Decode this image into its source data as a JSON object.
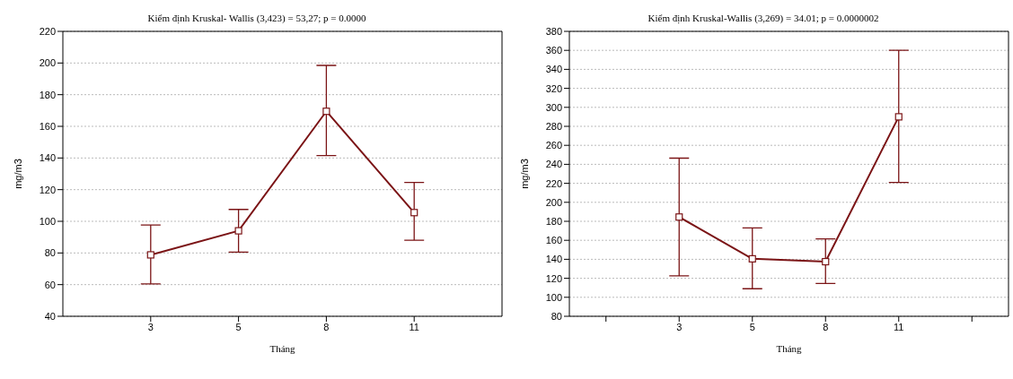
{
  "chart_data": [
    {
      "type": "line",
      "title": "Kiểm định Kruskal- Wallis (3,423) = 53,27; p = 0.0000",
      "xlabel": "Tháng",
      "ylabel": "mg/m3",
      "categories": [
        "3",
        "5",
        "8",
        "11"
      ],
      "series": [
        {
          "color": "#7b1416",
          "values": [
            78.8,
            94,
            169.5,
            105.5
          ],
          "errors": [
            [
              60.5,
              97.7
            ],
            [
              80.5,
              107.5
            ],
            [
              141.5,
              198.5
            ],
            [
              88,
              124.5
            ]
          ]
        }
      ],
      "ylim": [
        40,
        220
      ],
      "yticks": [
        40,
        60,
        80,
        100,
        120,
        140,
        160,
        180,
        200,
        220
      ],
      "grid": "y",
      "marker": "square",
      "line_style": "solid"
    },
    {
      "type": "line",
      "title": "Kiểm định Kruskal-Wallis (3,269) = 34.01; p = 0.0000002",
      "xlabel": "Tháng",
      "ylabel": "mg/m3",
      "categories": [
        null,
        "3",
        "5",
        "8",
        "11",
        null
      ],
      "series": [
        {
          "color": "#7b1416",
          "values": [
            null,
            184.5,
            140.5,
            137.5,
            290,
            null
          ],
          "errors": [
            null,
            [
              122.5,
              246.5
            ],
            [
              109,
              173
            ],
            [
              114.5,
              161.5
            ],
            [
              221,
              360
            ],
            null
          ]
        }
      ],
      "ylim": [
        80,
        380
      ],
      "yticks": [
        80,
        100,
        120,
        140,
        160,
        180,
        200,
        220,
        240,
        260,
        280,
        300,
        320,
        340,
        360,
        380
      ],
      "grid": "y",
      "marker": "square",
      "line_style": "solid"
    }
  ]
}
